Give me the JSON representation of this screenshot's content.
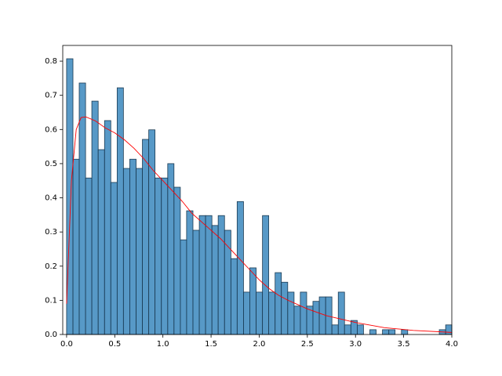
{
  "chart_data": {
    "type": "histogram",
    "bins": [
      0,
      0.066,
      0.131,
      0.197,
      0.262,
      0.328,
      0.394,
      0.459,
      0.525,
      0.59,
      0.656,
      0.722,
      0.787,
      0.853,
      0.918,
      0.984,
      1.05,
      1.115,
      1.181,
      1.246,
      1.312,
      1.378,
      1.443,
      1.509,
      1.574,
      1.64,
      1.706,
      1.771,
      1.837,
      1.902,
      1.968,
      2.034,
      2.099,
      2.165,
      2.23,
      2.296,
      2.362,
      2.427,
      2.493,
      2.558,
      2.624,
      2.69,
      2.755,
      2.821,
      2.886,
      2.952,
      3.018,
      3.083,
      3.149,
      3.214,
      3.28,
      3.346,
      3.411,
      3.477,
      3.542,
      3.608,
      3.674,
      3.739,
      3.805,
      3.87,
      3.936,
      4.0
    ],
    "values": [
      0.807,
      0.513,
      0.736,
      0.458,
      0.683,
      0.541,
      0.626,
      0.445,
      0.722,
      0.486,
      0.513,
      0.486,
      0.571,
      0.599,
      0.458,
      0.458,
      0.5,
      0.431,
      0.277,
      0.362,
      0.305,
      0.348,
      0.348,
      0.319,
      0.348,
      0.305,
      0.222,
      0.389,
      0.124,
      0.195,
      0.124,
      0.348,
      0.124,
      0.181,
      0.153,
      0.124,
      0.083,
      0.124,
      0.083,
      0.097,
      0.11,
      0.11,
      0.028,
      0.124,
      0.028,
      0.041,
      0.028,
      0,
      0.014,
      0,
      0.014,
      0.014,
      0,
      0.014,
      0,
      0,
      0,
      0,
      0,
      0.014,
      0.028
    ],
    "color": "#1f77b4",
    "curve": {
      "color": "#ff0000",
      "x": [
        0,
        0.05,
        0.1,
        0.15,
        0.2,
        0.3,
        0.4,
        0.5,
        0.6,
        0.7,
        0.8,
        0.9,
        1.0,
        1.1,
        1.2,
        1.3,
        1.4,
        1.5,
        1.6,
        1.7,
        1.8,
        1.9,
        2.0,
        2.1,
        2.2,
        2.3,
        2.5,
        2.7,
        3.0,
        3.3,
        3.6,
        4.0
      ],
      "y": [
        0.09,
        0.45,
        0.6,
        0.635,
        0.637,
        0.625,
        0.605,
        0.59,
        0.57,
        0.545,
        0.515,
        0.48,
        0.45,
        0.42,
        0.39,
        0.355,
        0.33,
        0.305,
        0.28,
        0.25,
        0.22,
        0.19,
        0.16,
        0.135,
        0.115,
        0.1,
        0.075,
        0.055,
        0.035,
        0.02,
        0.012,
        0.006
      ]
    },
    "xlim": [
      -0.04,
      4.0
    ],
    "xticks": [
      {
        "value": 0,
        "label": "0.0"
      },
      0.5,
      {
        "value": 1,
        "label": "1.0"
      },
      1.5,
      {
        "value": 2,
        "label": "2.0"
      },
      2.5,
      {
        "value": 3,
        "label": "3.0"
      },
      3.5,
      {
        "value": 4,
        "label": "4.0"
      }
    ],
    "ylim": [
      0,
      0.846
    ],
    "yticks": [
      {
        "value": 0,
        "label": "0.0"
      },
      0.1,
      0.2,
      0.3,
      0.4,
      0.5,
      0.6,
      0.7,
      0.8
    ]
  }
}
